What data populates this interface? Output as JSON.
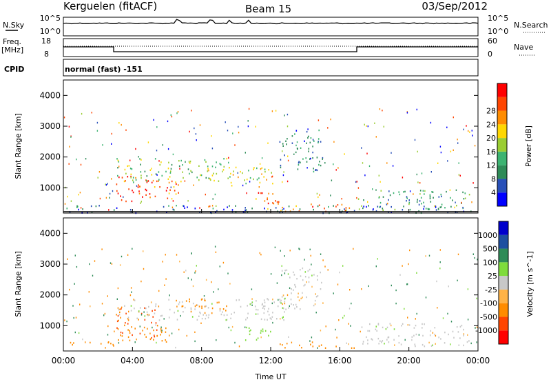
{
  "header": {
    "station": "Kerguelen (fitACF)",
    "beam": "Beam 15",
    "date": "03/Sep/2012"
  },
  "panels": {
    "nsky": {
      "left_label": "N.Sky",
      "top_tick": "10^5",
      "bottom_tick": "10^0",
      "right_top_tick": "10^5",
      "right_bottom_tick": "10^0",
      "right_label": "N.Search"
    },
    "freq": {
      "left_label": "Freq.",
      "unit_label": "[MHz]",
      "top_tick": "18",
      "bottom_tick": "8",
      "right_top_tick": "60",
      "right_bottom_tick": "0",
      "right_label": "Nave"
    },
    "cpid": {
      "left_label": "CPID",
      "text": "normal (fast) -151"
    }
  },
  "colors": {
    "power": [
      "#0000ff",
      "#2850b8",
      "#2e8b57",
      "#3cb371",
      "#9acd32",
      "#ffd700",
      "#ff8c00",
      "#ff4500",
      "#ff0000"
    ],
    "velocity": [
      "#ff0000",
      "#ff4500",
      "#ff8c00",
      "#ffb347",
      "#c8c8c8",
      "#7fdc3c",
      "#2e8b57",
      "#1e4fa0",
      "#0000cc"
    ]
  },
  "chart_data": [
    {
      "type": "heatmap",
      "title": "",
      "xlabel": "",
      "ylabel": "Slant Range [km]",
      "xlim": [
        "00:00",
        "24:00"
      ],
      "ylim": [
        180,
        4500
      ],
      "x_ticks": [
        "00:00",
        "04:00",
        "08:00",
        "12:00",
        "16:00",
        "20:00",
        "00:00"
      ],
      "y_ticks": [
        1000,
        2000,
        3000,
        4000
      ],
      "colorbar": {
        "label": "Power [dB]",
        "ticks": [
          4,
          8,
          12,
          16,
          20,
          24,
          28
        ],
        "range": [
          0,
          30
        ]
      },
      "regions": [
        {
          "t": [
            3.0,
            5.2
          ],
          "r": [
            550,
            1450
          ],
          "value": 26
        },
        {
          "t": [
            5.2,
            7.0
          ],
          "r": [
            650,
            1250
          ],
          "value": 22
        },
        {
          "t": [
            3.0,
            9.5
          ],
          "r": [
            1200,
            2000
          ],
          "value": 14
        },
        {
          "t": [
            9.5,
            12.3
          ],
          "r": [
            1000,
            1700
          ],
          "value": 16
        },
        {
          "t": [
            11.0,
            12.6
          ],
          "r": [
            500,
            1100
          ],
          "value": 24
        },
        {
          "t": [
            12.5,
            17.0
          ],
          "r": [
            250,
            500
          ],
          "value": 24
        },
        {
          "t": [
            17.0,
            23.5
          ],
          "r": [
            300,
            950
          ],
          "value": 10
        },
        {
          "t": [
            0.0,
            24.0
          ],
          "r": [
            200,
            450
          ],
          "value": 6
        },
        {
          "t": [
            12.5,
            15.0
          ],
          "r": [
            1500,
            2900
          ],
          "value": 8
        }
      ]
    },
    {
      "type": "heatmap",
      "title": "",
      "xlabel": "Time UT",
      "ylabel": "Slant Range [km]",
      "xlim": [
        "00:00",
        "24:00"
      ],
      "ylim": [
        180,
        4500
      ],
      "x_ticks": [
        "00:00",
        "04:00",
        "08:00",
        "12:00",
        "16:00",
        "20:00",
        "00:00"
      ],
      "y_ticks": [
        1000,
        2000,
        3000,
        4000
      ],
      "colorbar": {
        "label": "Velocity [m s^-1]",
        "ticks": [
          1000,
          500,
          100,
          25,
          -25,
          -100,
          -500,
          -1000
        ]
      },
      "regions": [
        {
          "t": [
            3.0,
            5.5
          ],
          "r": [
            550,
            1600
          ],
          "value": -500
        },
        {
          "t": [
            3.0,
            6.0
          ],
          "r": [
            500,
            950
          ],
          "value": -200
        },
        {
          "t": [
            6.5,
            9.5
          ],
          "r": [
            1400,
            1900
          ],
          "value": -300
        },
        {
          "t": [
            3.0,
            13.0
          ],
          "r": [
            1200,
            1900
          ],
          "value": 0
        },
        {
          "t": [
            10.5,
            12.0
          ],
          "r": [
            500,
            1100
          ],
          "value": 60
        },
        {
          "t": [
            12.5,
            17.0
          ],
          "r": [
            300,
            500
          ],
          "value": -150
        },
        {
          "t": [
            17.0,
            23.5
          ],
          "r": [
            350,
            1100
          ],
          "value": 0
        },
        {
          "t": [
            0.0,
            3.0
          ],
          "r": [
            300,
            500
          ],
          "value": -200
        },
        {
          "t": [
            12.5,
            15.0
          ],
          "r": [
            1500,
            2900
          ],
          "value": 0
        }
      ]
    }
  ]
}
